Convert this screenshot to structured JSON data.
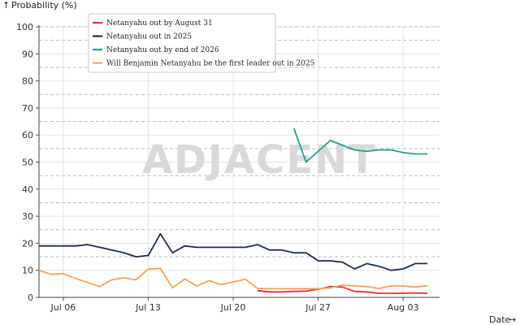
{
  "chart_data": {
    "type": "line",
    "xlabel": "Date",
    "ylabel": "Probability (%)",
    "ylim": [
      0,
      100
    ],
    "xlim": [
      "2025-07-04",
      "2025-08-06"
    ],
    "yticks": [
      0,
      10,
      20,
      30,
      40,
      50,
      60,
      70,
      80,
      90,
      100
    ],
    "xticks": [
      {
        "date": "2025-07-06",
        "label": "Jul 06"
      },
      {
        "date": "2025-07-13",
        "label": "Jul 13"
      },
      {
        "date": "2025-07-20",
        "label": "Jul 20"
      },
      {
        "date": "2025-07-27",
        "label": "Jul 27"
      },
      {
        "date": "2025-08-03",
        "label": "Aug 03"
      }
    ],
    "grid": true,
    "legend_position": "top-left",
    "axis_arrows": {
      "y": "↑",
      "x": "→"
    },
    "watermark": "ADJACENT",
    "series": [
      {
        "name": "Netanyahu out by August 31",
        "color": "#e0323e",
        "points": [
          [
            "2025-07-22",
            2.5
          ],
          [
            "2025-07-23",
            2
          ],
          [
            "2025-07-24",
            2
          ],
          [
            "2025-07-25",
            2.2
          ],
          [
            "2025-07-26",
            2.3
          ],
          [
            "2025-07-27",
            3
          ],
          [
            "2025-07-28",
            4
          ],
          [
            "2025-07-29",
            3.8
          ],
          [
            "2025-07-30",
            2.2
          ],
          [
            "2025-07-31",
            2
          ],
          [
            "2025-08-01",
            1.5
          ],
          [
            "2025-08-02",
            1.5
          ],
          [
            "2025-08-03",
            1.5
          ],
          [
            "2025-08-04",
            1.6
          ],
          [
            "2025-08-05",
            1.5
          ]
        ]
      },
      {
        "name": "Netanyahu out in 2025",
        "color": "#1b2f4f",
        "points": [
          [
            "2025-07-04",
            19
          ],
          [
            "2025-07-05",
            19
          ],
          [
            "2025-07-06",
            19
          ],
          [
            "2025-07-07",
            19
          ],
          [
            "2025-07-08",
            19.5
          ],
          [
            "2025-07-09",
            18.5
          ],
          [
            "2025-07-10",
            17.5
          ],
          [
            "2025-07-11",
            16.5
          ],
          [
            "2025-07-12",
            15
          ],
          [
            "2025-07-13",
            15.5
          ],
          [
            "2025-07-14",
            23.5
          ],
          [
            "2025-07-15",
            16.5
          ],
          [
            "2025-07-16",
            19
          ],
          [
            "2025-07-17",
            18.5
          ],
          [
            "2025-07-18",
            18.5
          ],
          [
            "2025-07-19",
            18.5
          ],
          [
            "2025-07-20",
            18.5
          ],
          [
            "2025-07-21",
            18.5
          ],
          [
            "2025-07-22",
            19.5
          ],
          [
            "2025-07-23",
            17.5
          ],
          [
            "2025-07-24",
            17.5
          ],
          [
            "2025-07-25",
            16.5
          ],
          [
            "2025-07-26",
            16.5
          ],
          [
            "2025-07-27",
            13.5
          ],
          [
            "2025-07-28",
            13.5
          ],
          [
            "2025-07-29",
            13
          ],
          [
            "2025-07-30",
            10.5
          ],
          [
            "2025-07-31",
            12.5
          ],
          [
            "2025-08-01",
            11.5
          ],
          [
            "2025-08-02",
            10
          ],
          [
            "2025-08-03",
            10.5
          ],
          [
            "2025-08-04",
            12.5
          ],
          [
            "2025-08-05",
            12.5
          ]
        ]
      },
      {
        "name": "Netanyahu out by end of 2026",
        "color": "#2a9d8f",
        "points": [
          [
            "2025-07-25",
            62.5
          ],
          [
            "2025-07-26",
            50
          ],
          [
            "2025-07-28",
            58
          ],
          [
            "2025-07-30",
            54.5
          ],
          [
            "2025-07-31",
            54
          ],
          [
            "2025-08-01",
            54.5
          ],
          [
            "2025-08-02",
            54.5
          ],
          [
            "2025-08-03",
            53.5
          ],
          [
            "2025-08-04",
            53
          ],
          [
            "2025-08-05",
            53
          ]
        ]
      },
      {
        "name": "Will Benjamin Netanyahu be the first leader out in 2025",
        "color": "#f4a261",
        "points": [
          [
            "2025-07-04",
            10
          ],
          [
            "2025-07-05",
            8.5
          ],
          [
            "2025-07-06",
            8.8
          ],
          [
            "2025-07-07",
            7
          ],
          [
            "2025-07-08",
            5.5
          ],
          [
            "2025-07-09",
            4
          ],
          [
            "2025-07-10",
            6.5
          ],
          [
            "2025-07-11",
            7.2
          ],
          [
            "2025-07-12",
            6.5
          ],
          [
            "2025-07-13",
            10.5
          ],
          [
            "2025-07-14",
            10.7
          ],
          [
            "2025-07-15",
            3.5
          ],
          [
            "2025-07-16",
            6.8
          ],
          [
            "2025-07-17",
            4.2
          ],
          [
            "2025-07-18",
            6.2
          ],
          [
            "2025-07-19",
            4.7
          ],
          [
            "2025-07-20",
            5.7
          ],
          [
            "2025-07-21",
            6.7
          ],
          [
            "2025-07-22",
            3.3
          ],
          [
            "2025-07-23",
            3.2
          ],
          [
            "2025-07-24",
            3.2
          ],
          [
            "2025-07-25",
            3.2
          ],
          [
            "2025-07-26",
            3.2
          ],
          [
            "2025-07-27",
            3.2
          ],
          [
            "2025-07-28",
            3.5
          ],
          [
            "2025-07-29",
            4.5
          ],
          [
            "2025-07-30",
            4.2
          ],
          [
            "2025-07-31",
            4
          ],
          [
            "2025-08-01",
            3.3
          ],
          [
            "2025-08-02",
            4.2
          ],
          [
            "2025-08-03",
            4.2
          ],
          [
            "2025-08-04",
            3.8
          ],
          [
            "2025-08-05",
            4.3
          ]
        ]
      }
    ]
  }
}
